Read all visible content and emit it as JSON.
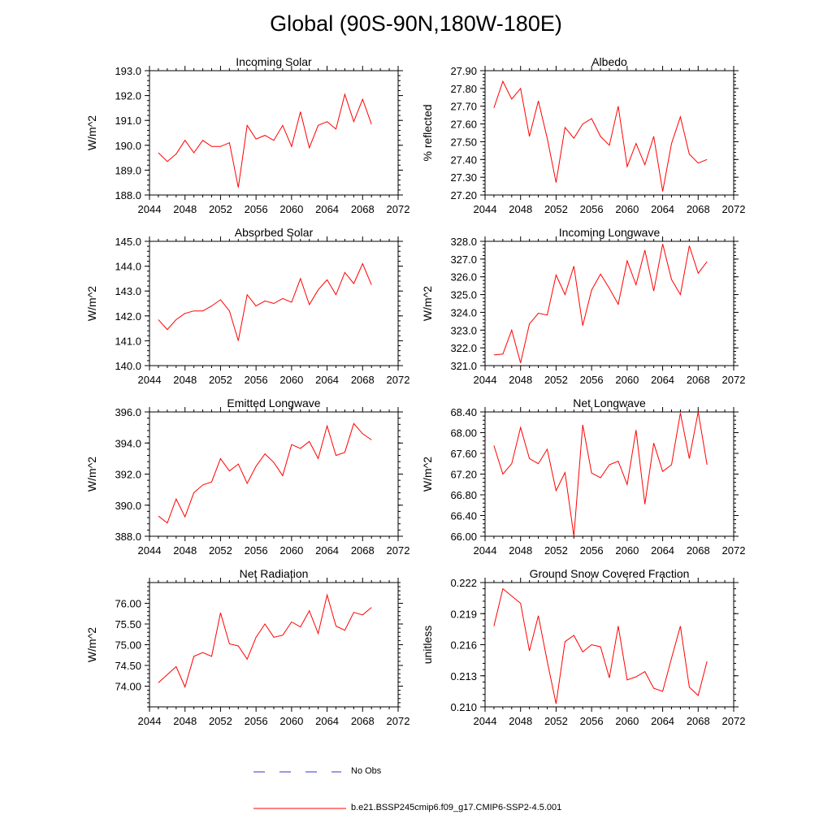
{
  "title": "Global (90S-90N,180W-180E)",
  "colors": {
    "model": "#ff0000",
    "obs": "#3333cc",
    "axis": "#000000"
  },
  "legend": {
    "obs_label": "No Obs",
    "model_label": "b.e21.BSSP245cmip6.f09_g17.CMIP6-SSP2-4.5.001"
  },
  "chart_data": [
    {
      "type": "line",
      "title": "Incoming Solar",
      "ylabel": "W/m^2",
      "xlim": [
        2044,
        2072
      ],
      "xticks": [
        2044,
        2048,
        2052,
        2056,
        2060,
        2064,
        2068,
        2072
      ],
      "ylim": [
        188,
        193
      ],
      "yticks": [
        188,
        189,
        190,
        191,
        192,
        193
      ],
      "ytick_labels": [
        "188.0",
        "189.0",
        "190.0",
        "191.0",
        "192.0",
        "193.0"
      ],
      "x": [
        2045,
        2046,
        2047,
        2048,
        2049,
        2050,
        2051,
        2052,
        2053,
        2054,
        2055,
        2056,
        2057,
        2058,
        2059,
        2060,
        2061,
        2062,
        2063,
        2064,
        2065,
        2066,
        2067,
        2068,
        2069
      ],
      "values": [
        189.7,
        189.35,
        189.65,
        190.2,
        189.7,
        190.2,
        189.95,
        189.95,
        190.1,
        188.3,
        190.8,
        190.25,
        190.4,
        190.2,
        190.8,
        189.95,
        191.35,
        189.9,
        190.8,
        190.95,
        190.65,
        192.05,
        190.95,
        191.85,
        190.85
      ]
    },
    {
      "type": "line",
      "title": "Albedo",
      "ylabel": "% reflected",
      "xlim": [
        2044,
        2072
      ],
      "xticks": [
        2044,
        2048,
        2052,
        2056,
        2060,
        2064,
        2068,
        2072
      ],
      "ylim": [
        27.2,
        27.9
      ],
      "yticks": [
        27.2,
        27.3,
        27.4,
        27.5,
        27.6,
        27.7,
        27.8,
        27.9
      ],
      "ytick_labels": [
        "27.20",
        "27.30",
        "27.40",
        "27.50",
        "27.60",
        "27.70",
        "27.80",
        "27.90"
      ],
      "x": [
        2045,
        2046,
        2047,
        2048,
        2049,
        2050,
        2051,
        2052,
        2053,
        2054,
        2055,
        2056,
        2057,
        2058,
        2059,
        2060,
        2061,
        2062,
        2063,
        2064,
        2065,
        2066,
        2067,
        2068,
        2069
      ],
      "values": [
        27.69,
        27.84,
        27.74,
        27.8,
        27.53,
        27.73,
        27.52,
        27.27,
        27.58,
        27.52,
        27.6,
        27.63,
        27.53,
        27.48,
        27.7,
        27.36,
        27.49,
        27.37,
        27.53,
        27.22,
        27.49,
        27.64,
        27.43,
        27.38,
        27.4
      ]
    },
    {
      "type": "line",
      "title": "Absorbed Solar",
      "ylabel": "W/m^2",
      "xlim": [
        2044,
        2072
      ],
      "xticks": [
        2044,
        2048,
        2052,
        2056,
        2060,
        2064,
        2068,
        2072
      ],
      "ylim": [
        140,
        145
      ],
      "yticks": [
        140,
        141,
        142,
        143,
        144,
        145
      ],
      "ytick_labels": [
        "140.0",
        "141.0",
        "142.0",
        "143.0",
        "144.0",
        "145.0"
      ],
      "x": [
        2045,
        2046,
        2047,
        2048,
        2049,
        2050,
        2051,
        2052,
        2053,
        2054,
        2055,
        2056,
        2057,
        2058,
        2059,
        2060,
        2061,
        2062,
        2063,
        2064,
        2065,
        2066,
        2067,
        2068,
        2069
      ],
      "values": [
        141.85,
        141.45,
        141.85,
        142.1,
        142.2,
        142.2,
        142.4,
        142.65,
        142.2,
        141.0,
        142.85,
        142.4,
        142.6,
        142.5,
        142.7,
        142.55,
        143.5,
        142.45,
        143.05,
        143.45,
        142.85,
        143.75,
        143.3,
        144.1,
        143.25
      ]
    },
    {
      "type": "line",
      "title": "Incoming Longwave",
      "ylabel": "W/m^2",
      "xlim": [
        2044,
        2072
      ],
      "xticks": [
        2044,
        2048,
        2052,
        2056,
        2060,
        2064,
        2068,
        2072
      ],
      "ylim": [
        321,
        328
      ],
      "yticks": [
        321,
        322,
        323,
        324,
        325,
        326,
        327,
        328
      ],
      "ytick_labels": [
        "321.0",
        "322.0",
        "323.0",
        "324.0",
        "325.0",
        "326.0",
        "327.0",
        "328.0"
      ],
      "x": [
        2045,
        2046,
        2047,
        2048,
        2049,
        2050,
        2051,
        2052,
        2053,
        2054,
        2055,
        2056,
        2057,
        2058,
        2059,
        2060,
        2061,
        2062,
        2063,
        2064,
        2065,
        2066,
        2067,
        2068,
        2069
      ],
      "values": [
        321.6,
        321.65,
        323.0,
        321.15,
        323.35,
        323.95,
        323.85,
        326.1,
        325.0,
        326.6,
        323.25,
        325.25,
        326.15,
        325.35,
        324.45,
        326.9,
        325.55,
        327.5,
        325.2,
        327.85,
        325.85,
        325.0,
        327.75,
        326.2,
        326.85
      ]
    },
    {
      "type": "line",
      "title": "Emitted Longwave",
      "ylabel": "W/m^2",
      "xlim": [
        2044,
        2072
      ],
      "xticks": [
        2044,
        2048,
        2052,
        2056,
        2060,
        2064,
        2068,
        2072
      ],
      "ylim": [
        388,
        396
      ],
      "yticks": [
        388,
        390,
        392,
        394,
        396
      ],
      "ytick_labels": [
        "388.0",
        "390.0",
        "392.0",
        "394.0",
        "396.0"
      ],
      "x": [
        2045,
        2046,
        2047,
        2048,
        2049,
        2050,
        2051,
        2052,
        2053,
        2054,
        2055,
        2056,
        2057,
        2058,
        2059,
        2060,
        2061,
        2062,
        2063,
        2064,
        2065,
        2066,
        2067,
        2068,
        2069
      ],
      "values": [
        389.3,
        388.85,
        390.4,
        389.25,
        390.8,
        391.3,
        391.5,
        393.0,
        392.2,
        392.65,
        391.4,
        392.5,
        393.3,
        392.75,
        391.9,
        393.9,
        393.65,
        394.1,
        393.0,
        395.1,
        393.2,
        393.4,
        395.25,
        394.6,
        394.2
      ]
    },
    {
      "type": "line",
      "title": "Net Longwave",
      "ylabel": "W/m^2",
      "xlim": [
        2044,
        2072
      ],
      "xticks": [
        2044,
        2048,
        2052,
        2056,
        2060,
        2064,
        2068,
        2072
      ],
      "ylim": [
        66,
        68.4
      ],
      "yticks": [
        66,
        66.4,
        66.8,
        67.2,
        67.6,
        68.0,
        68.4
      ],
      "ytick_labels": [
        "66.00",
        "66.40",
        "66.80",
        "67.20",
        "67.60",
        "68.00",
        "68.40"
      ],
      "x": [
        2045,
        2046,
        2047,
        2048,
        2049,
        2050,
        2051,
        2052,
        2053,
        2054,
        2055,
        2056,
        2057,
        2058,
        2059,
        2060,
        2061,
        2062,
        2063,
        2064,
        2065,
        2066,
        2067,
        2068,
        2069
      ],
      "values": [
        67.75,
        67.2,
        67.4,
        68.1,
        67.5,
        67.4,
        67.68,
        66.88,
        67.23,
        66.0,
        68.15,
        67.22,
        67.13,
        67.38,
        67.45,
        67.0,
        68.05,
        66.62,
        67.8,
        67.25,
        67.38,
        68.38,
        67.5,
        68.4,
        67.38
      ]
    },
    {
      "type": "line",
      "title": "Net Radiation",
      "ylabel": "W/m^2",
      "xlim": [
        2044,
        2072
      ],
      "xticks": [
        2044,
        2048,
        2052,
        2056,
        2060,
        2064,
        2068,
        2072
      ],
      "ylim": [
        73.5,
        76.5
      ],
      "yticks": [
        74.0,
        74.5,
        75.0,
        75.5,
        76.0
      ],
      "ytick_labels": [
        "74.00",
        "74.50",
        "75.00",
        "75.50",
        "76.00"
      ],
      "x": [
        2045,
        2046,
        2047,
        2048,
        2049,
        2050,
        2051,
        2052,
        2053,
        2054,
        2055,
        2056,
        2057,
        2058,
        2059,
        2060,
        2061,
        2062,
        2063,
        2064,
        2065,
        2066,
        2067,
        2068,
        2069
      ],
      "values": [
        74.08,
        74.28,
        74.47,
        73.98,
        74.72,
        74.81,
        74.72,
        75.77,
        75.02,
        74.97,
        74.65,
        75.18,
        75.5,
        75.18,
        75.23,
        75.55,
        75.43,
        75.82,
        75.27,
        76.2,
        75.45,
        75.35,
        75.78,
        75.72,
        75.9
      ]
    },
    {
      "type": "line",
      "title": "Ground Snow Covered Fraction",
      "ylabel": "unitless",
      "xlim": [
        2044,
        2072
      ],
      "xticks": [
        2044,
        2048,
        2052,
        2056,
        2060,
        2064,
        2068,
        2072
      ],
      "ylim": [
        0.21,
        0.222
      ],
      "yticks": [
        0.21,
        0.213,
        0.216,
        0.219,
        0.222
      ],
      "ytick_labels": [
        "0.210",
        "0.213",
        "0.216",
        "0.219",
        "0.222"
      ],
      "x": [
        2045,
        2046,
        2047,
        2048,
        2049,
        2050,
        2051,
        2052,
        2053,
        2054,
        2055,
        2056,
        2057,
        2058,
        2059,
        2060,
        2061,
        2062,
        2063,
        2064,
        2065,
        2066,
        2067,
        2068,
        2069
      ],
      "values": [
        0.2178,
        0.2214,
        0.2207,
        0.22,
        0.2154,
        0.2188,
        0.2144,
        0.2103,
        0.2163,
        0.2169,
        0.2153,
        0.216,
        0.2158,
        0.2128,
        0.2178,
        0.2126,
        0.2129,
        0.2134,
        0.2118,
        0.2115,
        0.2147,
        0.2178,
        0.2119,
        0.2111,
        0.2144
      ]
    }
  ]
}
